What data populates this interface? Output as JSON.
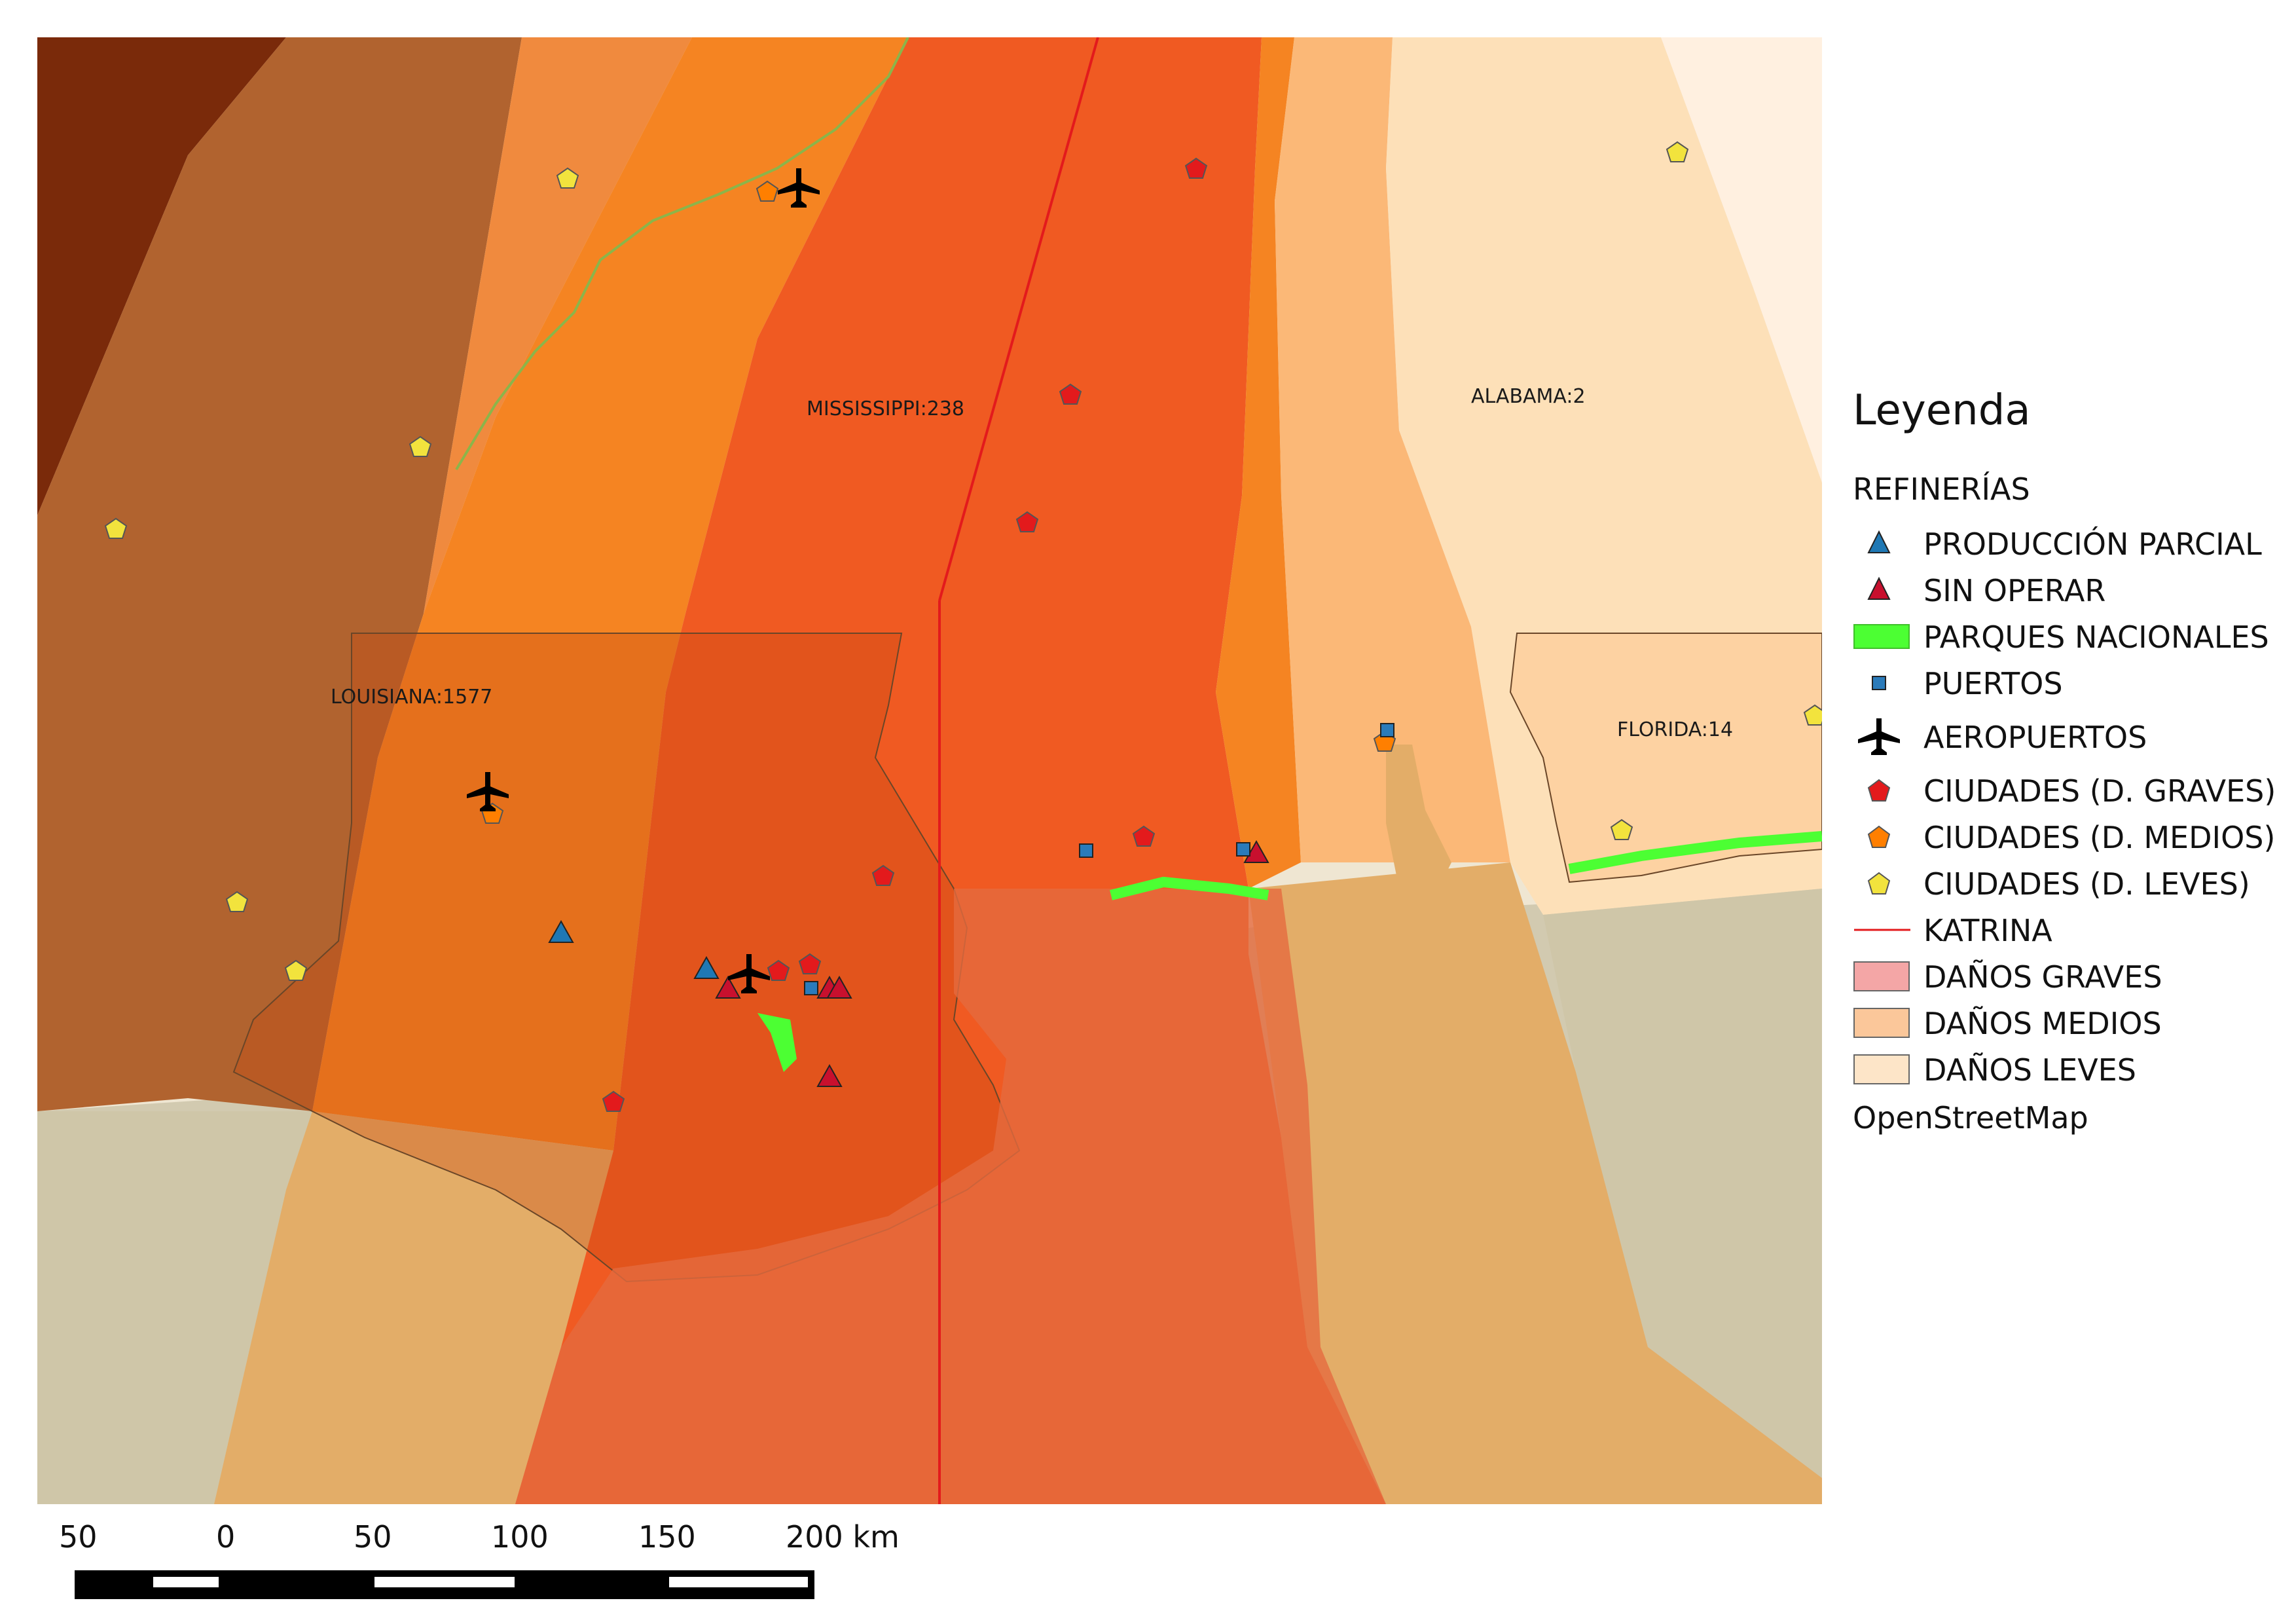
{
  "map": {
    "state_labels": [
      {
        "name": "MISSISSIPPI:238"
      },
      {
        "name": "ALABAMA:2"
      },
      {
        "name": "LOUISIANA:1577"
      },
      {
        "name": "FLORIDA:14"
      }
    ]
  },
  "legend": {
    "title": "Leyenda",
    "group": "REFINERÍAS",
    "items": [
      {
        "label": "PRODUCCIÓN PARCIAL",
        "icon": "blue-triangle-icon",
        "color": "#1f78b4"
      },
      {
        "label": "SIN OPERAR",
        "icon": "red-triangle-icon",
        "color": "#c8102e"
      },
      {
        "label": "PARQUES NACIONALES",
        "icon": "green-park-icon",
        "color": "#4cff33"
      },
      {
        "label": "PUERTOS",
        "icon": "blue-square-icon",
        "color": "#2b7bba"
      },
      {
        "label": "AEROPUERTOS",
        "icon": "airplane-icon",
        "color": "#000000"
      },
      {
        "label": "CIUDADES (D. GRAVES)",
        "icon": "red-pentagon-icon",
        "color": "#e31a1c"
      },
      {
        "label": "CIUDADES (D. MEDIOS)",
        "icon": "orange-pentagon-icon",
        "color": "#ff7f00"
      },
      {
        "label": "CIUDADES (D. LEVES)",
        "icon": "yellow-pentagon-icon",
        "color": "#f2e33d"
      },
      {
        "label": "KATRINA",
        "icon": "red-line-icon",
        "color": "#e31a1c"
      },
      {
        "label": "DAÑOS GRAVES",
        "icon": "pink-patch-icon",
        "color": "#f4a6a6"
      },
      {
        "label": "DAÑOS MEDIOS",
        "icon": "peach-patch-icon",
        "color": "#fbc79a"
      },
      {
        "label": "DAÑOS LEVES",
        "icon": "cream-patch-icon",
        "color": "#fde5c8"
      }
    ],
    "source": "OpenStreetMap"
  },
  "scalebar": {
    "labels": [
      "50",
      "0",
      "50",
      "100",
      "150",
      "200 km"
    ]
  }
}
